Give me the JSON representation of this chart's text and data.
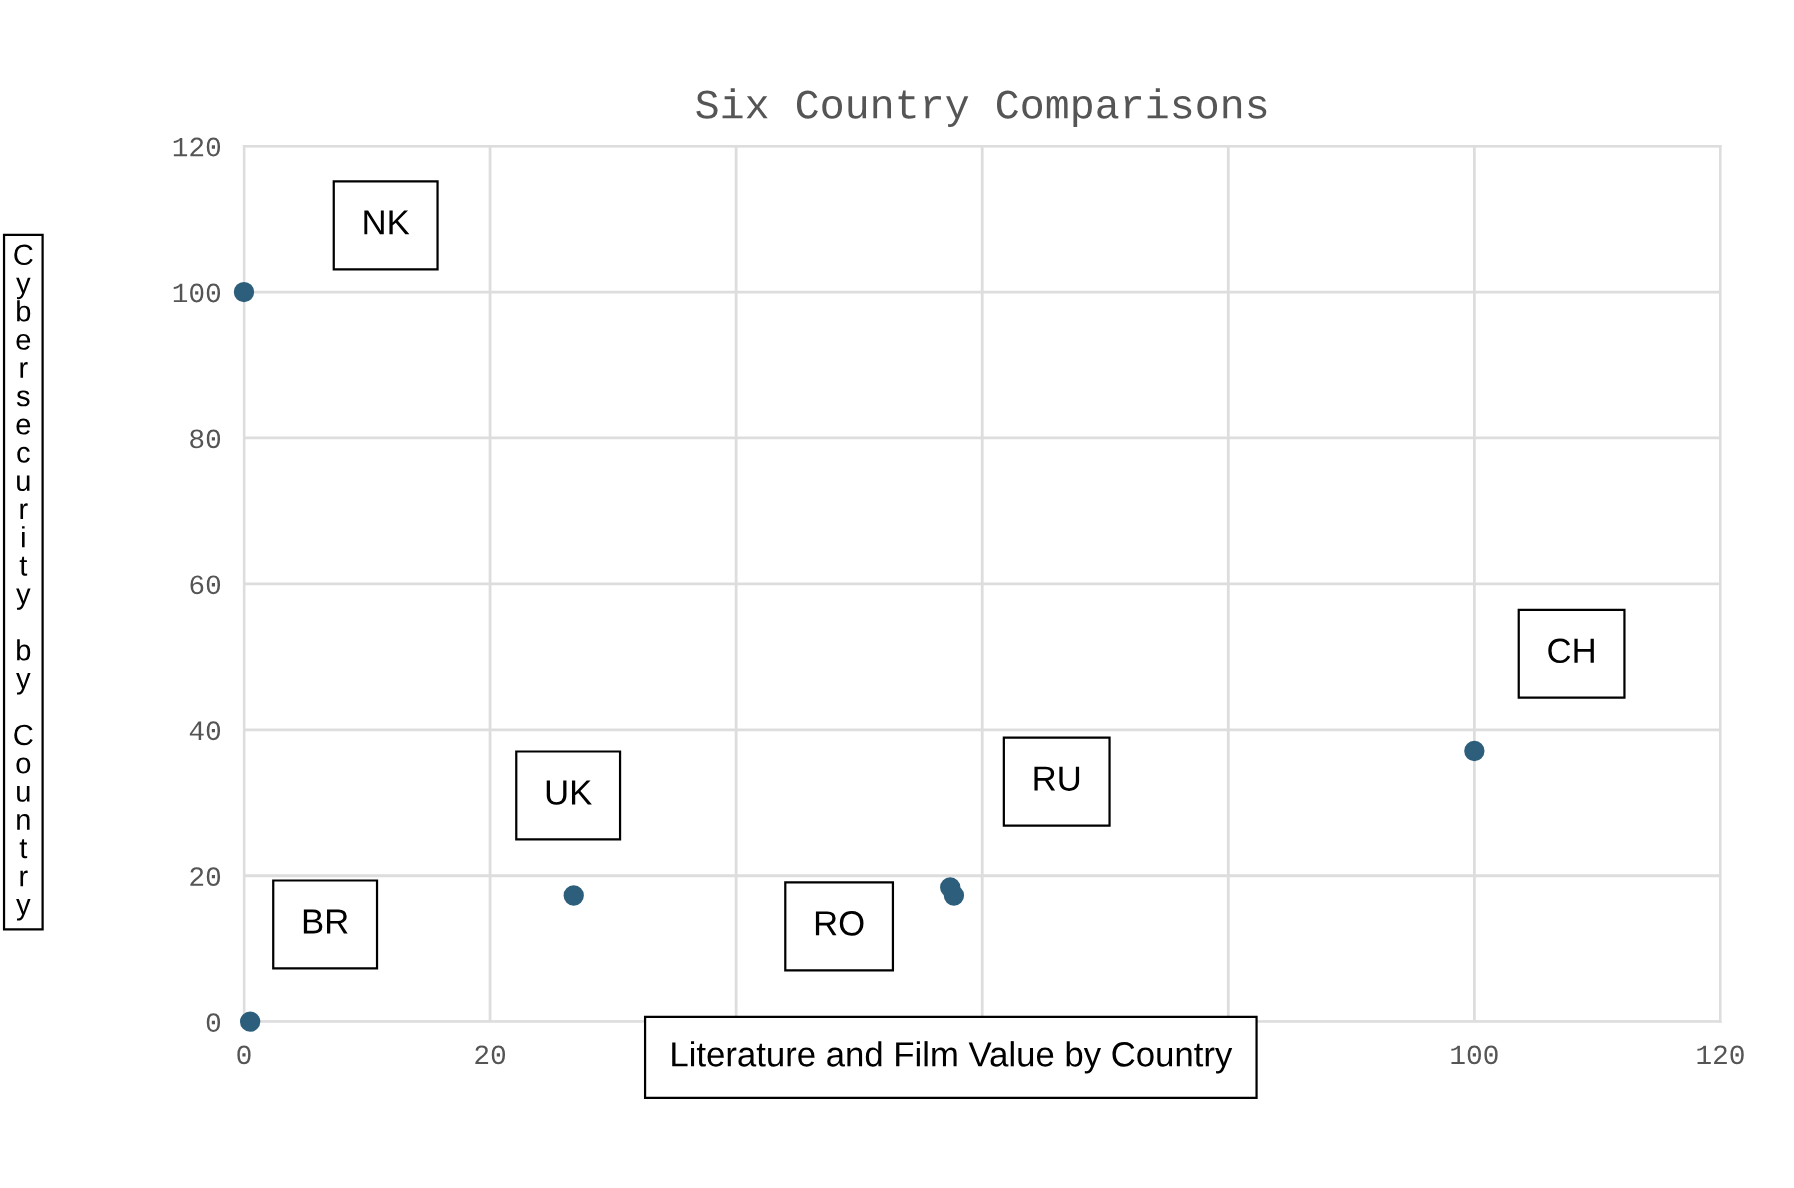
{
  "chart_data": {
    "type": "scatter",
    "title": "Six Country Comparisons",
    "xlabel": "Literature and Film Value by Country",
    "ylabel": "Cybersecurity by Country",
    "x": [
      0,
      0.5,
      26.8,
      57.4,
      57.7,
      100
    ],
    "values": [
      100,
      0,
      17.3,
      18.4,
      17.3,
      37.1
    ],
    "color": "#2d5f7c",
    "marker": "circle",
    "xlim": [
      0,
      120
    ],
    "ylim": [
      0,
      120
    ],
    "xticks": [
      0,
      20,
      {
        "value": 40,
        "label": null
      },
      {
        "value": 60,
        "label": null
      },
      {
        "value": 80,
        "label": null
      },
      100,
      120
    ],
    "yticks": [
      0,
      20,
      40,
      60,
      80,
      100,
      120
    ],
    "grid": true,
    "legend": false,
    "annotations": [
      "NK",
      "BR",
      "UK",
      "RO",
      "RU",
      "CH"
    ]
  }
}
